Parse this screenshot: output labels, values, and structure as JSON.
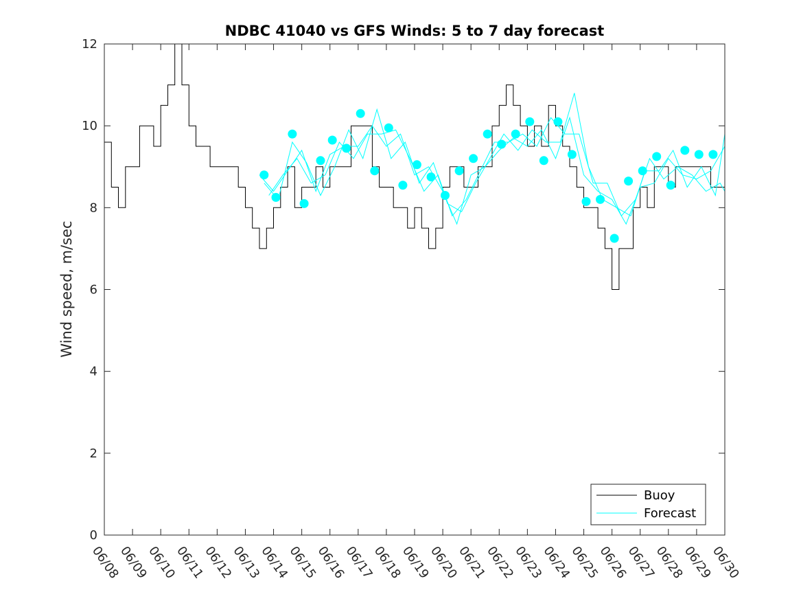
{
  "chart_data": {
    "type": "line",
    "title": "NDBC 41040 vs GFS Winds: 5 to 7 day forecast",
    "xlabel": "",
    "ylabel": "Wind speed, m/sec",
    "xlim": [
      "06/08",
      "06/30"
    ],
    "ylim": [
      0,
      12
    ],
    "x_ticks": [
      "06/08",
      "06/09",
      "06/10",
      "06/11",
      "06/12",
      "06/13",
      "06/14",
      "06/15",
      "06/16",
      "06/17",
      "06/18",
      "06/19",
      "06/20",
      "06/21",
      "06/22",
      "06/23",
      "06/24",
      "06/25",
      "06/26",
      "06/27",
      "06/28",
      "06/29",
      "06/30"
    ],
    "y_ticks": [
      0,
      2,
      4,
      6,
      8,
      10,
      12
    ],
    "grid": false,
    "legend": {
      "position": "bottom-right",
      "entries": [
        "Buoy",
        "Forecast"
      ]
    },
    "colors": {
      "buoy": "#000000",
      "forecast": "#00ffff"
    },
    "series": [
      {
        "name": "Buoy",
        "x": [
          "06/08 00:00",
          "06/08 06:00",
          "06/08 12:00",
          "06/08 18:00",
          "06/09 00:00",
          "06/09 06:00",
          "06/09 12:00",
          "06/09 18:00",
          "06/10 00:00",
          "06/10 06:00",
          "06/10 12:00",
          "06/10 18:00",
          "06/11 00:00",
          "06/11 06:00",
          "06/11 12:00",
          "06/11 18:00",
          "06/12 00:00",
          "06/12 06:00",
          "06/12 12:00",
          "06/12 18:00",
          "06/13 00:00",
          "06/13 06:00",
          "06/13 12:00",
          "06/13 18:00",
          "06/14 00:00",
          "06/14 06:00",
          "06/14 12:00",
          "06/14 18:00",
          "06/15 00:00",
          "06/15 06:00",
          "06/15 12:00",
          "06/15 18:00",
          "06/16 00:00",
          "06/16 06:00",
          "06/16 12:00",
          "06/16 18:00",
          "06/17 00:00",
          "06/17 06:00",
          "06/17 12:00",
          "06/17 18:00",
          "06/18 00:00",
          "06/18 06:00",
          "06/18 12:00",
          "06/18 18:00",
          "06/19 00:00",
          "06/19 06:00",
          "06/19 12:00",
          "06/19 18:00",
          "06/20 00:00",
          "06/20 06:00",
          "06/20 12:00",
          "06/20 18:00",
          "06/21 00:00",
          "06/21 06:00",
          "06/21 12:00",
          "06/21 18:00",
          "06/22 00:00",
          "06/22 06:00",
          "06/22 12:00",
          "06/22 18:00",
          "06/23 00:00",
          "06/23 06:00",
          "06/23 12:00",
          "06/23 18:00",
          "06/24 00:00",
          "06/24 06:00",
          "06/24 12:00",
          "06/24 18:00",
          "06/25 00:00",
          "06/25 06:00",
          "06/25 12:00",
          "06/25 18:00",
          "06/26 00:00",
          "06/26 06:00",
          "06/26 12:00",
          "06/26 18:00",
          "06/27 00:00",
          "06/27 06:00",
          "06/27 12:00",
          "06/27 18:00",
          "06/28 00:00",
          "06/28 06:00",
          "06/28 12:00",
          "06/28 18:00",
          "06/29 00:00",
          "06/29 06:00",
          "06/29 12:00",
          "06/29 18:00",
          "06/30 00:00"
        ],
        "y": [
          9.6,
          8.5,
          8,
          9,
          9,
          10,
          10,
          9.5,
          10.5,
          11,
          12,
          11,
          10,
          9.5,
          9.5,
          9,
          9,
          9,
          9,
          8.5,
          8,
          7.5,
          7,
          7.5,
          8,
          8.5,
          9,
          8,
          8.5,
          8.5,
          9,
          8.5,
          9,
          9,
          9,
          10,
          10,
          10,
          9,
          8.5,
          8.5,
          8,
          8,
          7.5,
          8,
          7.5,
          7,
          7.5,
          8.5,
          9,
          9,
          8.5,
          8.5,
          9,
          9,
          10,
          10.5,
          11,
          10.5,
          10,
          9.5,
          10,
          9.5,
          10.5,
          10,
          9.5,
          9,
          8.5,
          8,
          8,
          7.5,
          7,
          6,
          7,
          7,
          8,
          8.5,
          8,
          9,
          9,
          8.5,
          9,
          9,
          9,
          9,
          9,
          8.5,
          8.5,
          8
        ]
      },
      {
        "name": "Forecast",
        "x": [
          "06/13 12:00",
          "06/14 00:00",
          "06/14 12:00",
          "06/15 00:00",
          "06/15 12:00",
          "06/16 00:00",
          "06/16 12:00",
          "06/17 00:00",
          "06/17 12:00",
          "06/18 00:00",
          "06/18 12:00",
          "06/19 00:00",
          "06/19 12:00",
          "06/20 00:00",
          "06/20 12:00",
          "06/21 00:00",
          "06/21 12:00",
          "06/22 00:00",
          "06/22 12:00",
          "06/23 00:00",
          "06/23 12:00",
          "06/24 00:00",
          "06/24 12:00",
          "06/25 00:00",
          "06/25 12:00",
          "06/26 00:00",
          "06/26 12:00",
          "06/27 00:00",
          "06/27 12:00",
          "06/28 00:00",
          "06/28 12:00",
          "06/29 00:00",
          "06/29 12:00",
          "06/30 00:00"
        ],
        "y": [
          8.8,
          8.4,
          8.9,
          9.4,
          8.4,
          9.3,
          9.5,
          9.5,
          10,
          9.5,
          9.8,
          8.8,
          9,
          8.4,
          7.6,
          8.8,
          9,
          9.4,
          9.7,
          9.5,
          9.9,
          9.2,
          10.2,
          8.8,
          8.4,
          8.2,
          7.6,
          8.5,
          8.6,
          9.2,
          8.8,
          8.7,
          8.9,
          9.5
        ]
      },
      {
        "name": "Forecast",
        "x": [
          "06/13 16:00",
          "06/14 04:00",
          "06/14 16:00",
          "06/15 04:00",
          "06/15 16:00",
          "06/16 04:00",
          "06/16 16:00",
          "06/17 04:00",
          "06/17 16:00",
          "06/18 04:00",
          "06/18 16:00",
          "06/19 04:00",
          "06/19 16:00",
          "06/20 04:00",
          "06/20 16:00",
          "06/21 04:00",
          "06/21 16:00",
          "06/22 04:00",
          "06/22 16:00",
          "06/23 04:00",
          "06/23 16:00",
          "06/24 04:00",
          "06/24 16:00",
          "06/25 04:00",
          "06/25 16:00",
          "06/26 04:00",
          "06/26 16:00",
          "06/27 04:00",
          "06/27 16:00",
          "06/28 04:00",
          "06/28 16:00",
          "06/29 04:00",
          "06/29 16:00",
          "06/30 00:00"
        ],
        "y": [
          8.6,
          8.2,
          9.6,
          9.1,
          8.3,
          9,
          9.9,
          9.2,
          10.4,
          9.2,
          9.6,
          8.6,
          9.1,
          8.1,
          7.9,
          8.6,
          9.2,
          9.8,
          9.4,
          9.9,
          9.6,
          9.6,
          10.8,
          9,
          8.2,
          8,
          7.8,
          8.9,
          8.9,
          9.4,
          8.5,
          9,
          8.3,
          9.8
        ]
      },
      {
        "name": "Forecast",
        "x": [
          "06/13 20:00",
          "06/14 08:00",
          "06/14 20:00",
          "06/15 08:00",
          "06/15 20:00",
          "06/16 08:00",
          "06/16 20:00",
          "06/17 08:00",
          "06/17 20:00",
          "06/18 08:00",
          "06/18 20:00",
          "06/19 08:00",
          "06/19 20:00",
          "06/20 08:00",
          "06/20 20:00",
          "06/21 08:00",
          "06/21 20:00",
          "06/22 08:00",
          "06/22 20:00",
          "06/23 08:00",
          "06/23 20:00",
          "06/24 08:00",
          "06/24 20:00",
          "06/25 08:00",
          "06/25 20:00",
          "06/26 08:00",
          "06/26 20:00",
          "06/27 08:00",
          "06/27 20:00",
          "06/28 08:00",
          "06/28 20:00",
          "06/29 08:00",
          "06/29 20:00",
          "06/30 00:00"
        ],
        "y": [
          8.3,
          8.8,
          9.2,
          8.6,
          8.8,
          9.6,
          9.2,
          9.8,
          9.8,
          9.9,
          9.2,
          8.4,
          8.8,
          7.8,
          8.2,
          8.9,
          9.6,
          9.6,
          9.8,
          9.5,
          10.2,
          9.8,
          9.8,
          8.6,
          8.6,
          7.8,
          8.2,
          9.2,
          8.7,
          9,
          8.8,
          8.4,
          8.6,
          8.4
        ]
      }
    ],
    "forecast_markers": {
      "x": [
        "06/13 16:00",
        "06/14 02:00",
        "06/14 16:00",
        "06/15 02:00",
        "06/15 16:00",
        "06/16 02:00",
        "06/16 14:00",
        "06/17 02:00",
        "06/17 14:00",
        "06/18 02:00",
        "06/18 14:00",
        "06/19 02:00",
        "06/19 14:00",
        "06/20 02:00",
        "06/20 14:00",
        "06/21 02:00",
        "06/21 14:00",
        "06/22 02:00",
        "06/22 14:00",
        "06/23 02:00",
        "06/23 14:00",
        "06/24 02:00",
        "06/24 14:00",
        "06/25 02:00",
        "06/25 14:00",
        "06/26 02:00",
        "06/26 14:00",
        "06/27 02:00",
        "06/27 14:00",
        "06/28 02:00",
        "06/28 14:00",
        "06/29 02:00",
        "06/29 14:00"
      ],
      "y": [
        8.8,
        8.25,
        9.8,
        8.1,
        9.15,
        9.65,
        9.45,
        10.3,
        8.9,
        9.95,
        8.55,
        9.05,
        8.75,
        8.3,
        8.9,
        9.2,
        9.8,
        9.55,
        9.8,
        10.1,
        9.15,
        10.1,
        9.3,
        8.15,
        8.2,
        7.25,
        8.65,
        8.9,
        9.25,
        8.55,
        9.4,
        9.3,
        9.3
      ]
    }
  }
}
